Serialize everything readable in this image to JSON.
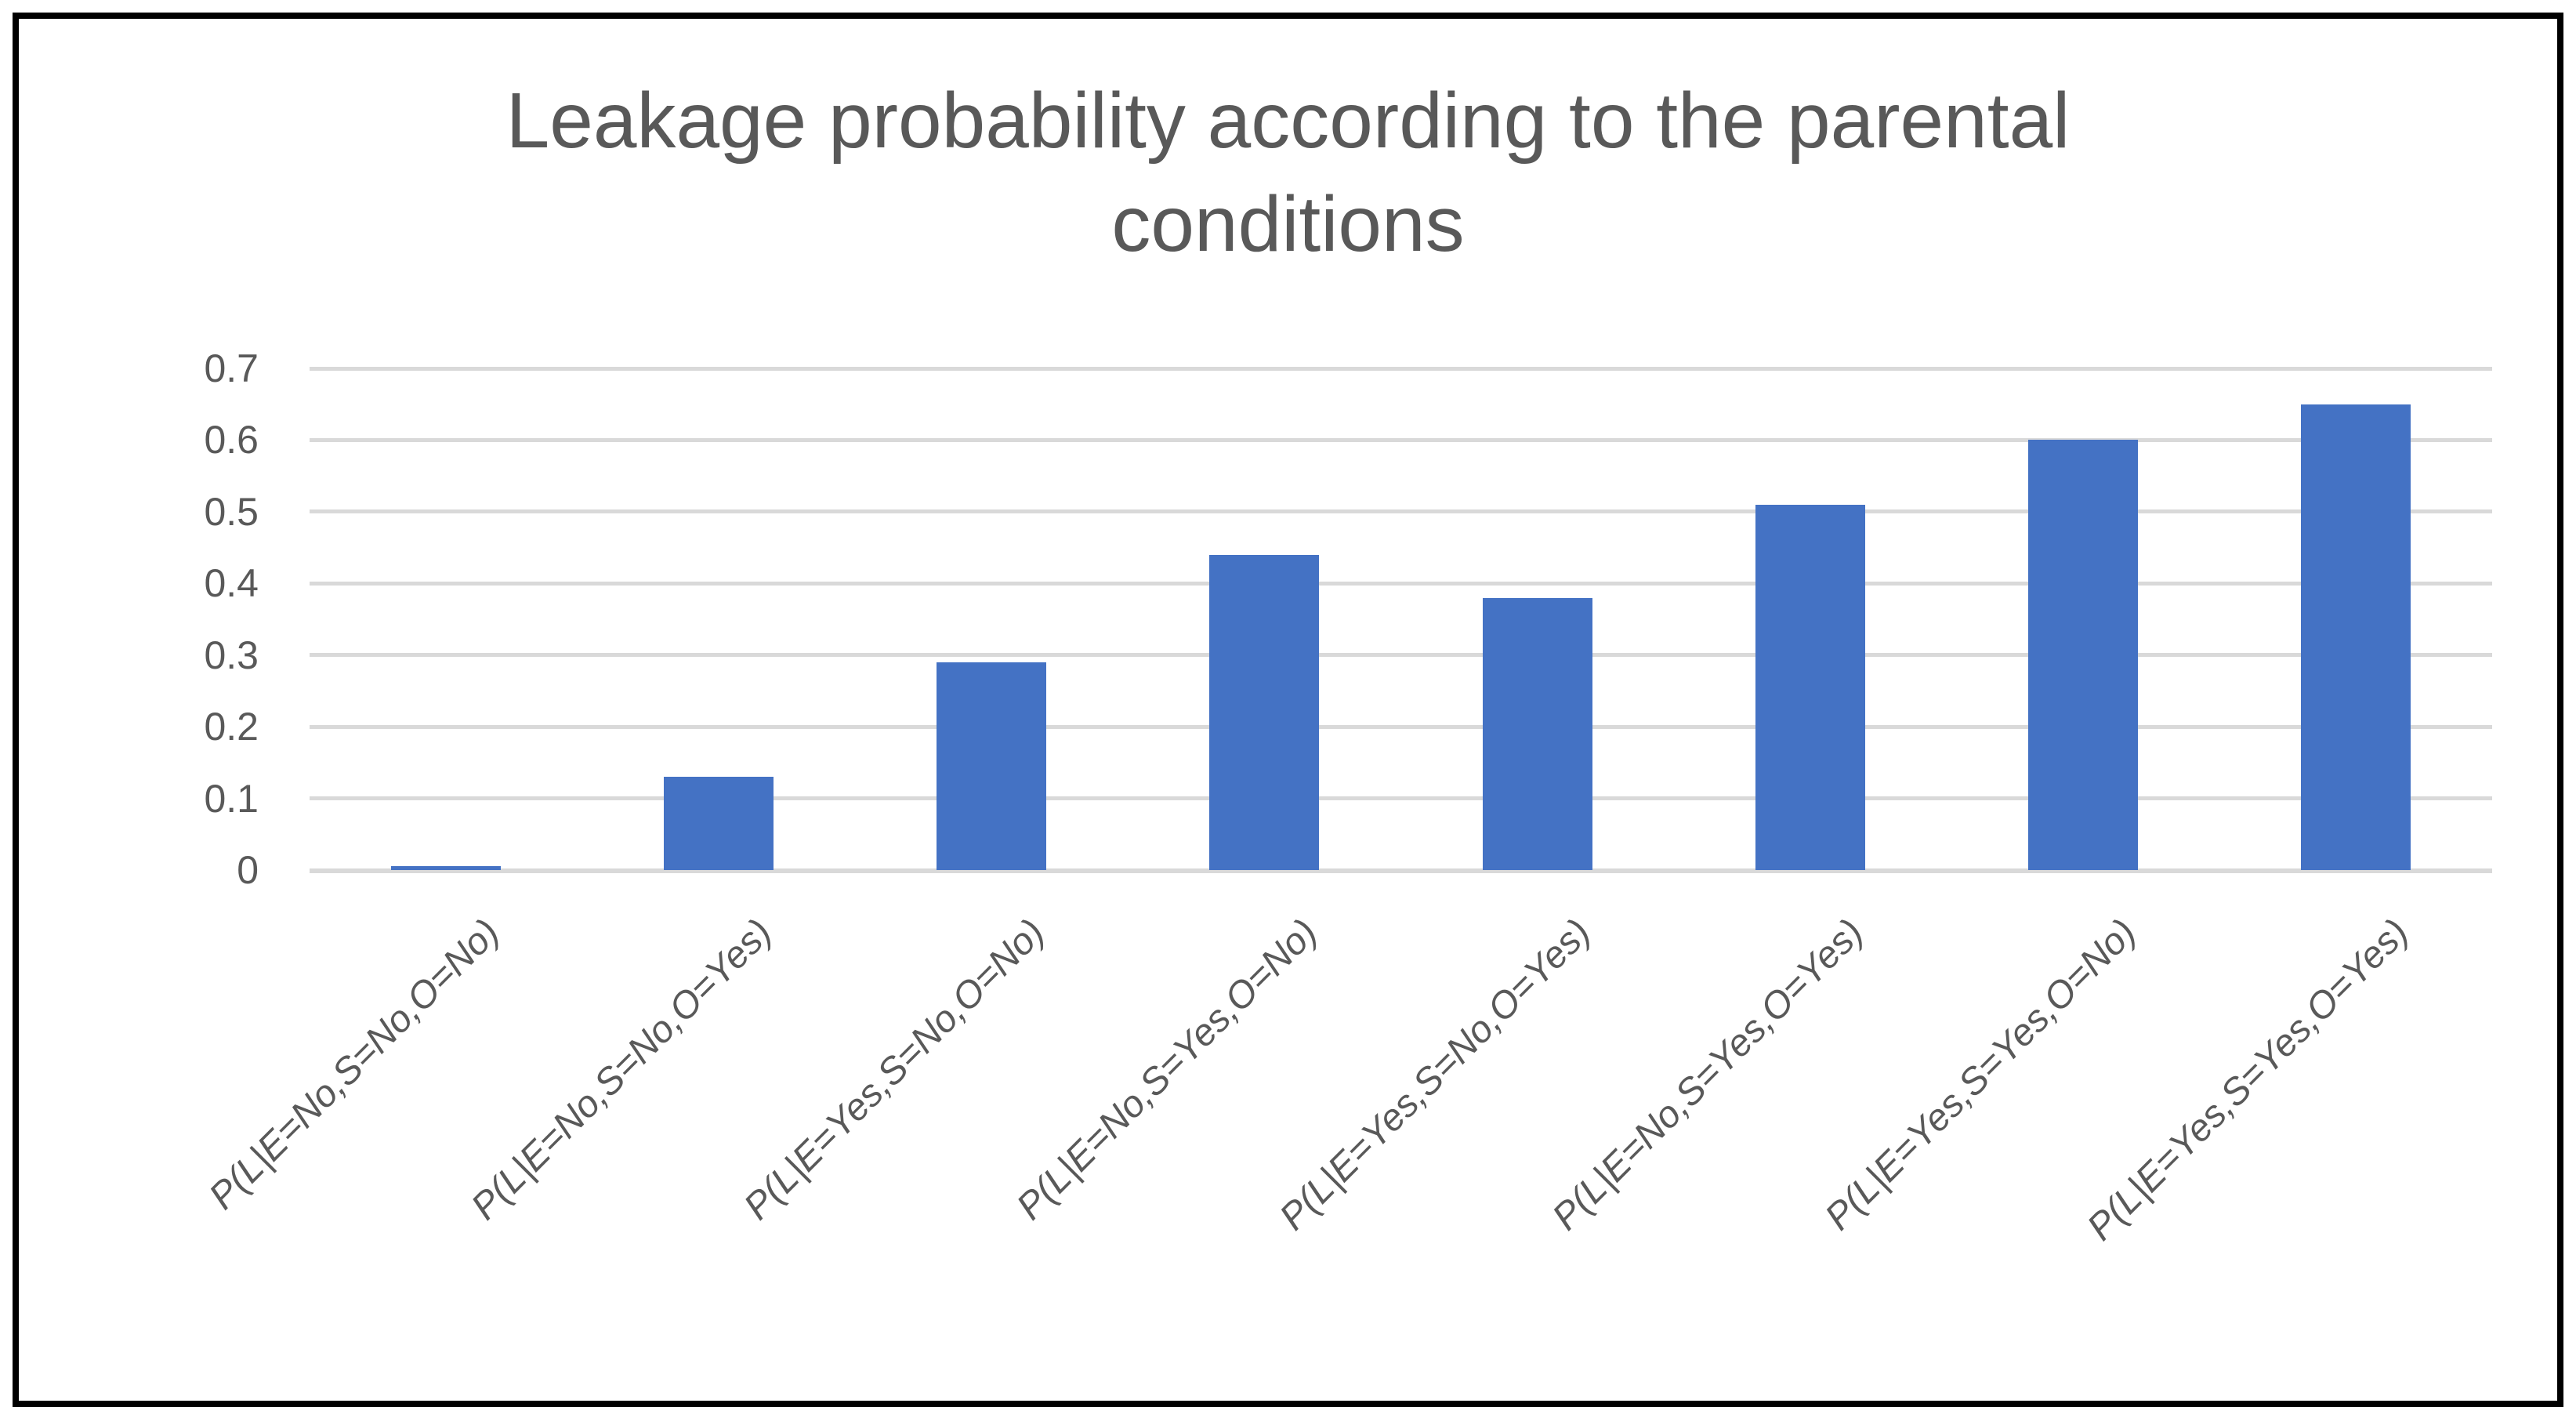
{
  "chart_data": {
    "type": "bar",
    "title": "Leakage probability according to the parental conditions",
    "title_lines": [
      "Leakage probability according to the parental",
      "conditions"
    ],
    "categories": [
      "P(L|E=No,S=No,O=No)",
      "P(L|E=No,S=No,O=Yes)",
      "P(L|E=Yes,S=No,O=No)",
      "P(L|E=No,S=Yes,O=No)",
      "P(L|E=Yes,S=No,O=Yes)",
      "P(L|E=No,S=Yes,O=Yes)",
      "P(L|E=Yes,S=Yes,O=No)",
      "P(L|E=Yes,S=Yes,O=Yes)"
    ],
    "values": [
      0.005,
      0.13,
      0.29,
      0.44,
      0.38,
      0.51,
      0.6,
      0.65
    ],
    "xlabel": "",
    "ylabel": "",
    "ylim": [
      0,
      0.7
    ],
    "ytick_labels": [
      "0",
      "0.1",
      "0.2",
      "0.3",
      "0.4",
      "0.5",
      "0.6",
      "0.7"
    ],
    "grid": true,
    "legend": false,
    "bar_color": "#4472C4",
    "gridline_color": "#D9D9D9",
    "text_color": "#595959",
    "frame_color": "#000000"
  }
}
